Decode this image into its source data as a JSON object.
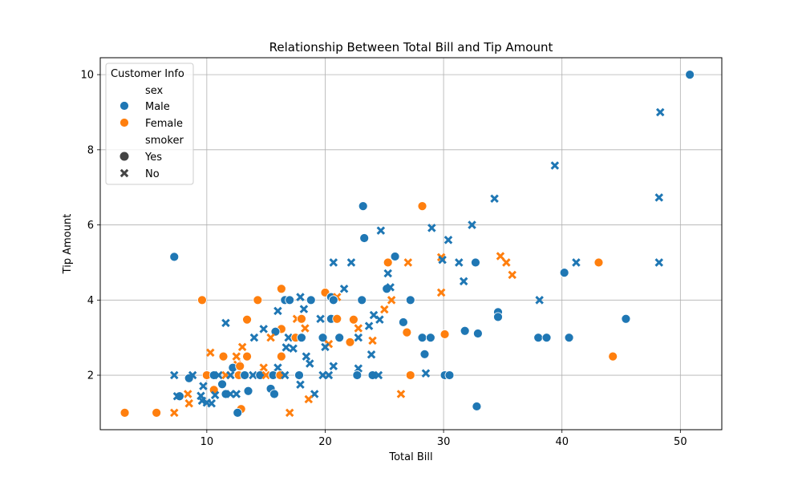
{
  "chart_data": {
    "type": "scatter",
    "title": "Relationship Between Total Bill and Tip Amount",
    "xlabel": "Total Bill",
    "ylabel": "Tip Amount",
    "xlim": [
      1.0,
      53.5
    ],
    "ylim": [
      0.55,
      10.45
    ],
    "xticks": [
      10,
      20,
      30,
      40,
      50
    ],
    "yticks": [
      2,
      4,
      6,
      8,
      10
    ],
    "grid": true,
    "colors": {
      "Male": "#1f77b4",
      "Female": "#ff7f0e"
    },
    "legend": {
      "title": "Customer Info",
      "placement": "upper-left",
      "hue_title": "sex",
      "hue_entries": [
        "Male",
        "Female"
      ],
      "style_title": "smoker",
      "style_entries": [
        "Yes",
        "No"
      ],
      "style_markers": {
        "Yes": "circle",
        "No": "x"
      }
    },
    "points": [
      {
        "x": 50.8,
        "y": 10.0,
        "sex": "Male",
        "smoker": "Yes"
      },
      {
        "x": 48.3,
        "y": 9.0,
        "sex": "Male",
        "smoker": "No"
      },
      {
        "x": 39.4,
        "y": 7.58,
        "sex": "Male",
        "smoker": "No"
      },
      {
        "x": 48.2,
        "y": 6.73,
        "sex": "Male",
        "smoker": "No"
      },
      {
        "x": 34.3,
        "y": 6.7,
        "sex": "Male",
        "smoker": "No"
      },
      {
        "x": 23.2,
        "y": 6.5,
        "sex": "Male",
        "smoker": "Yes"
      },
      {
        "x": 28.2,
        "y": 6.5,
        "sex": "Female",
        "smoker": "Yes"
      },
      {
        "x": 32.4,
        "y": 6.0,
        "sex": "Male",
        "smoker": "No"
      },
      {
        "x": 29.0,
        "y": 5.92,
        "sex": "Male",
        "smoker": "No"
      },
      {
        "x": 24.7,
        "y": 5.85,
        "sex": "Male",
        "smoker": "No"
      },
      {
        "x": 23.3,
        "y": 5.65,
        "sex": "Male",
        "smoker": "Yes"
      },
      {
        "x": 30.4,
        "y": 5.6,
        "sex": "Male",
        "smoker": "No"
      },
      {
        "x": 34.8,
        "y": 5.17,
        "sex": "Female",
        "smoker": "No"
      },
      {
        "x": 25.9,
        "y": 5.16,
        "sex": "Male",
        "smoker": "Yes"
      },
      {
        "x": 7.25,
        "y": 5.15,
        "sex": "Male",
        "smoker": "Yes"
      },
      {
        "x": 29.8,
        "y": 5.14,
        "sex": "Female",
        "smoker": "No"
      },
      {
        "x": 29.9,
        "y": 5.07,
        "sex": "Male",
        "smoker": "No"
      },
      {
        "x": 20.7,
        "y": 5.0,
        "sex": "Male",
        "smoker": "No"
      },
      {
        "x": 22.2,
        "y": 5.0,
        "sex": "Male",
        "smoker": "No"
      },
      {
        "x": 25.3,
        "y": 5.0,
        "sex": "Female",
        "smoker": "Yes"
      },
      {
        "x": 27.0,
        "y": 5.0,
        "sex": "Female",
        "smoker": "No"
      },
      {
        "x": 31.3,
        "y": 5.0,
        "sex": "Male",
        "smoker": "No"
      },
      {
        "x": 32.7,
        "y": 5.0,
        "sex": "Male",
        "smoker": "Yes"
      },
      {
        "x": 35.3,
        "y": 5.0,
        "sex": "Female",
        "smoker": "No"
      },
      {
        "x": 41.2,
        "y": 5.0,
        "sex": "Male",
        "smoker": "No"
      },
      {
        "x": 43.1,
        "y": 5.0,
        "sex": "Female",
        "smoker": "Yes"
      },
      {
        "x": 48.2,
        "y": 5.0,
        "sex": "Male",
        "smoker": "No"
      },
      {
        "x": 40.2,
        "y": 4.73,
        "sex": "Male",
        "smoker": "Yes"
      },
      {
        "x": 25.3,
        "y": 4.71,
        "sex": "Male",
        "smoker": "No"
      },
      {
        "x": 35.8,
        "y": 4.67,
        "sex": "Female",
        "smoker": "No"
      },
      {
        "x": 31.7,
        "y": 4.5,
        "sex": "Male",
        "smoker": "No"
      },
      {
        "x": 16.3,
        "y": 4.3,
        "sex": "Female",
        "smoker": "Yes"
      },
      {
        "x": 21.6,
        "y": 4.3,
        "sex": "Male",
        "smoker": "No"
      },
      {
        "x": 25.2,
        "y": 4.3,
        "sex": "Male",
        "smoker": "Yes"
      },
      {
        "x": 25.5,
        "y": 4.34,
        "sex": "Male",
        "smoker": "No"
      },
      {
        "x": 29.8,
        "y": 4.2,
        "sex": "Female",
        "smoker": "No"
      },
      {
        "x": 20.0,
        "y": 4.2,
        "sex": "Female",
        "smoker": "Yes"
      },
      {
        "x": 20.5,
        "y": 4.08,
        "sex": "Male",
        "smoker": "Yes"
      },
      {
        "x": 21.0,
        "y": 4.08,
        "sex": "Female",
        "smoker": "No"
      },
      {
        "x": 17.9,
        "y": 4.08,
        "sex": "Male",
        "smoker": "No"
      },
      {
        "x": 9.6,
        "y": 4.0,
        "sex": "Female",
        "smoker": "Yes"
      },
      {
        "x": 14.3,
        "y": 4.0,
        "sex": "Female",
        "smoker": "Yes"
      },
      {
        "x": 16.6,
        "y": 4.0,
        "sex": "Male",
        "smoker": "Yes"
      },
      {
        "x": 17.0,
        "y": 4.0,
        "sex": "Male",
        "smoker": "Yes"
      },
      {
        "x": 18.8,
        "y": 4.0,
        "sex": "Male",
        "smoker": "Yes"
      },
      {
        "x": 23.1,
        "y": 4.0,
        "sex": "Male",
        "smoker": "Yes"
      },
      {
        "x": 20.7,
        "y": 4.0,
        "sex": "Male",
        "smoker": "Yes"
      },
      {
        "x": 25.6,
        "y": 4.0,
        "sex": "Female",
        "smoker": "No"
      },
      {
        "x": 27.2,
        "y": 4.0,
        "sex": "Male",
        "smoker": "Yes"
      },
      {
        "x": 38.1,
        "y": 4.0,
        "sex": "Male",
        "smoker": "No"
      },
      {
        "x": 18.2,
        "y": 3.76,
        "sex": "Male",
        "smoker": "No"
      },
      {
        "x": 16.0,
        "y": 3.71,
        "sex": "Male",
        "smoker": "No"
      },
      {
        "x": 25.0,
        "y": 3.75,
        "sex": "Female",
        "smoker": "No"
      },
      {
        "x": 34.6,
        "y": 3.68,
        "sex": "Male",
        "smoker": "Yes"
      },
      {
        "x": 24.1,
        "y": 3.6,
        "sex": "Male",
        "smoker": "No"
      },
      {
        "x": 34.6,
        "y": 3.55,
        "sex": "Male",
        "smoker": "Yes"
      },
      {
        "x": 20.5,
        "y": 3.5,
        "sex": "Male",
        "smoker": "Yes"
      },
      {
        "x": 13.4,
        "y": 3.48,
        "sex": "Female",
        "smoker": "Yes"
      },
      {
        "x": 17.6,
        "y": 3.5,
        "sex": "Female",
        "smoker": "No"
      },
      {
        "x": 18.0,
        "y": 3.5,
        "sex": "Female",
        "smoker": "Yes"
      },
      {
        "x": 19.6,
        "y": 3.5,
        "sex": "Male",
        "smoker": "No"
      },
      {
        "x": 21.0,
        "y": 3.5,
        "sex": "Female",
        "smoker": "Yes"
      },
      {
        "x": 22.4,
        "y": 3.48,
        "sex": "Female",
        "smoker": "Yes"
      },
      {
        "x": 24.6,
        "y": 3.48,
        "sex": "Male",
        "smoker": "No"
      },
      {
        "x": 45.4,
        "y": 3.5,
        "sex": "Male",
        "smoker": "Yes"
      },
      {
        "x": 26.6,
        "y": 3.41,
        "sex": "Male",
        "smoker": "Yes"
      },
      {
        "x": 11.6,
        "y": 3.39,
        "sex": "Male",
        "smoker": "No"
      },
      {
        "x": 23.7,
        "y": 3.31,
        "sex": "Male",
        "smoker": "No"
      },
      {
        "x": 22.8,
        "y": 3.25,
        "sex": "Female",
        "smoker": "No"
      },
      {
        "x": 16.3,
        "y": 3.23,
        "sex": "Female",
        "smoker": "Yes"
      },
      {
        "x": 14.8,
        "y": 3.23,
        "sex": "Male",
        "smoker": "No"
      },
      {
        "x": 18.3,
        "y": 3.25,
        "sex": "Female",
        "smoker": "No"
      },
      {
        "x": 31.8,
        "y": 3.18,
        "sex": "Male",
        "smoker": "Yes"
      },
      {
        "x": 15.8,
        "y": 3.16,
        "sex": "Male",
        "smoker": "Yes"
      },
      {
        "x": 26.9,
        "y": 3.14,
        "sex": "Female",
        "smoker": "Yes"
      },
      {
        "x": 32.9,
        "y": 3.11,
        "sex": "Male",
        "smoker": "Yes"
      },
      {
        "x": 30.1,
        "y": 3.09,
        "sex": "Female",
        "smoker": "Yes"
      },
      {
        "x": 14.0,
        "y": 3.0,
        "sex": "Male",
        "smoker": "No"
      },
      {
        "x": 15.4,
        "y": 3.0,
        "sex": "Female",
        "smoker": "No"
      },
      {
        "x": 16.9,
        "y": 3.0,
        "sex": "Male",
        "smoker": "No"
      },
      {
        "x": 17.5,
        "y": 3.0,
        "sex": "Female",
        "smoker": "Yes"
      },
      {
        "x": 18.0,
        "y": 3.0,
        "sex": "Male",
        "smoker": "Yes"
      },
      {
        "x": 19.8,
        "y": 3.0,
        "sex": "Male",
        "smoker": "Yes"
      },
      {
        "x": 21.2,
        "y": 3.0,
        "sex": "Male",
        "smoker": "Yes"
      },
      {
        "x": 22.8,
        "y": 3.0,
        "sex": "Male",
        "smoker": "No"
      },
      {
        "x": 28.2,
        "y": 3.0,
        "sex": "Male",
        "smoker": "Yes"
      },
      {
        "x": 28.9,
        "y": 3.0,
        "sex": "Male",
        "smoker": "Yes"
      },
      {
        "x": 38.0,
        "y": 3.0,
        "sex": "Male",
        "smoker": "Yes"
      },
      {
        "x": 38.7,
        "y": 3.0,
        "sex": "Male",
        "smoker": "Yes"
      },
      {
        "x": 40.6,
        "y": 3.0,
        "sex": "Male",
        "smoker": "Yes"
      },
      {
        "x": 24.0,
        "y": 2.92,
        "sex": "Female",
        "smoker": "No"
      },
      {
        "x": 22.1,
        "y": 2.88,
        "sex": "Female",
        "smoker": "Yes"
      },
      {
        "x": 20.3,
        "y": 2.83,
        "sex": "Female",
        "smoker": "No"
      },
      {
        "x": 13.0,
        "y": 2.75,
        "sex": "Female",
        "smoker": "No"
      },
      {
        "x": 17.3,
        "y": 2.71,
        "sex": "Male",
        "smoker": "No"
      },
      {
        "x": 20.0,
        "y": 2.75,
        "sex": "Male",
        "smoker": "No"
      },
      {
        "x": 16.7,
        "y": 2.74,
        "sex": "Male",
        "smoker": "No"
      },
      {
        "x": 10.3,
        "y": 2.6,
        "sex": "Female",
        "smoker": "No"
      },
      {
        "x": 28.4,
        "y": 2.56,
        "sex": "Male",
        "smoker": "Yes"
      },
      {
        "x": 23.9,
        "y": 2.55,
        "sex": "Male",
        "smoker": "No"
      },
      {
        "x": 11.4,
        "y": 2.5,
        "sex": "Female",
        "smoker": "Yes"
      },
      {
        "x": 12.5,
        "y": 2.5,
        "sex": "Female",
        "smoker": "No"
      },
      {
        "x": 13.4,
        "y": 2.5,
        "sex": "Female",
        "smoker": "Yes"
      },
      {
        "x": 16.3,
        "y": 2.5,
        "sex": "Female",
        "smoker": "Yes"
      },
      {
        "x": 18.4,
        "y": 2.5,
        "sex": "Male",
        "smoker": "No"
      },
      {
        "x": 44.3,
        "y": 2.5,
        "sex": "Female",
        "smoker": "Yes"
      },
      {
        "x": 18.7,
        "y": 2.31,
        "sex": "Male",
        "smoker": "No"
      },
      {
        "x": 12.6,
        "y": 2.28,
        "sex": "Female",
        "smoker": "No"
      },
      {
        "x": 12.2,
        "y": 2.2,
        "sex": "Male",
        "smoker": "Yes"
      },
      {
        "x": 12.8,
        "y": 2.24,
        "sex": "Female",
        "smoker": "Yes"
      },
      {
        "x": 14.8,
        "y": 2.2,
        "sex": "Female",
        "smoker": "No"
      },
      {
        "x": 16.0,
        "y": 2.2,
        "sex": "Male",
        "smoker": "No"
      },
      {
        "x": 20.7,
        "y": 2.24,
        "sex": "Male",
        "smoker": "No"
      },
      {
        "x": 22.8,
        "y": 2.18,
        "sex": "Male",
        "smoker": "No"
      },
      {
        "x": 7.25,
        "y": 2.0,
        "sex": "Male",
        "smoker": "No"
      },
      {
        "x": 8.5,
        "y": 1.92,
        "sex": "Male",
        "smoker": "Yes"
      },
      {
        "x": 8.8,
        "y": 2.0,
        "sex": "Male",
        "smoker": "No"
      },
      {
        "x": 10.0,
        "y": 2.0,
        "sex": "Female",
        "smoker": "Yes"
      },
      {
        "x": 10.6,
        "y": 2.0,
        "sex": "Male",
        "smoker": "Yes"
      },
      {
        "x": 11.0,
        "y": 2.0,
        "sex": "Male",
        "smoker": "No"
      },
      {
        "x": 11.6,
        "y": 2.0,
        "sex": "Female",
        "smoker": "No"
      },
      {
        "x": 12.0,
        "y": 2.0,
        "sex": "Male",
        "smoker": "No"
      },
      {
        "x": 12.7,
        "y": 2.0,
        "sex": "Female",
        "smoker": "Yes"
      },
      {
        "x": 13.2,
        "y": 2.0,
        "sex": "Male",
        "smoker": "Yes"
      },
      {
        "x": 13.9,
        "y": 2.0,
        "sex": "Male",
        "smoker": "No"
      },
      {
        "x": 14.5,
        "y": 2.0,
        "sex": "Male",
        "smoker": "Yes"
      },
      {
        "x": 15.0,
        "y": 2.0,
        "sex": "Female",
        "smoker": "No"
      },
      {
        "x": 15.6,
        "y": 2.0,
        "sex": "Male",
        "smoker": "Yes"
      },
      {
        "x": 16.2,
        "y": 2.0,
        "sex": "Female",
        "smoker": "Yes"
      },
      {
        "x": 16.6,
        "y": 2.0,
        "sex": "Male",
        "smoker": "No"
      },
      {
        "x": 17.8,
        "y": 2.0,
        "sex": "Male",
        "smoker": "Yes"
      },
      {
        "x": 19.8,
        "y": 2.0,
        "sex": "Male",
        "smoker": "No"
      },
      {
        "x": 20.3,
        "y": 2.0,
        "sex": "Male",
        "smoker": "No"
      },
      {
        "x": 22.7,
        "y": 2.0,
        "sex": "Male",
        "smoker": "Yes"
      },
      {
        "x": 24.0,
        "y": 2.0,
        "sex": "Male",
        "smoker": "Yes"
      },
      {
        "x": 24.5,
        "y": 2.0,
        "sex": "Male",
        "smoker": "No"
      },
      {
        "x": 27.2,
        "y": 2.0,
        "sex": "Female",
        "smoker": "Yes"
      },
      {
        "x": 28.5,
        "y": 2.05,
        "sex": "Male",
        "smoker": "No"
      },
      {
        "x": 30.1,
        "y": 2.0,
        "sex": "Male",
        "smoker": "Yes"
      },
      {
        "x": 30.5,
        "y": 2.0,
        "sex": "Male",
        "smoker": "Yes"
      },
      {
        "x": 11.3,
        "y": 1.76,
        "sex": "Male",
        "smoker": "Yes"
      },
      {
        "x": 9.7,
        "y": 1.71,
        "sex": "Male",
        "smoker": "No"
      },
      {
        "x": 15.4,
        "y": 1.64,
        "sex": "Male",
        "smoker": "Yes"
      },
      {
        "x": 17.9,
        "y": 1.75,
        "sex": "Male",
        "smoker": "No"
      },
      {
        "x": 10.6,
        "y": 1.61,
        "sex": "Female",
        "smoker": "Yes"
      },
      {
        "x": 13.5,
        "y": 1.58,
        "sex": "Male",
        "smoker": "Yes"
      },
      {
        "x": 11.6,
        "y": 1.5,
        "sex": "Male",
        "smoker": "Yes"
      },
      {
        "x": 12.0,
        "y": 1.5,
        "sex": "Male",
        "smoker": "No"
      },
      {
        "x": 12.5,
        "y": 1.5,
        "sex": "Male",
        "smoker": "No"
      },
      {
        "x": 15.7,
        "y": 1.5,
        "sex": "Male",
        "smoker": "Yes"
      },
      {
        "x": 19.1,
        "y": 1.5,
        "sex": "Male",
        "smoker": "No"
      },
      {
        "x": 26.4,
        "y": 1.5,
        "sex": "Female",
        "smoker": "No"
      },
      {
        "x": 8.4,
        "y": 1.5,
        "sex": "Female",
        "smoker": "No"
      },
      {
        "x": 7.7,
        "y": 1.44,
        "sex": "Male",
        "smoker": "Yes"
      },
      {
        "x": 7.5,
        "y": 1.44,
        "sex": "Male",
        "smoker": "No"
      },
      {
        "x": 9.5,
        "y": 1.45,
        "sex": "Male",
        "smoker": "No"
      },
      {
        "x": 10.7,
        "y": 1.47,
        "sex": "Male",
        "smoker": "No"
      },
      {
        "x": 18.6,
        "y": 1.36,
        "sex": "Female",
        "smoker": "No"
      },
      {
        "x": 9.6,
        "y": 1.32,
        "sex": "Male",
        "smoker": "No"
      },
      {
        "x": 10.0,
        "y": 1.27,
        "sex": "Male",
        "smoker": "No"
      },
      {
        "x": 10.4,
        "y": 1.25,
        "sex": "Male",
        "smoker": "No"
      },
      {
        "x": 8.5,
        "y": 1.25,
        "sex": "Female",
        "smoker": "No"
      },
      {
        "x": 32.8,
        "y": 1.17,
        "sex": "Male",
        "smoker": "Yes"
      },
      {
        "x": 12.9,
        "y": 1.1,
        "sex": "Female",
        "smoker": "Yes"
      },
      {
        "x": 3.07,
        "y": 1.0,
        "sex": "Female",
        "smoker": "Yes"
      },
      {
        "x": 5.75,
        "y": 1.0,
        "sex": "Female",
        "smoker": "Yes"
      },
      {
        "x": 7.25,
        "y": 1.0,
        "sex": "Female",
        "smoker": "No"
      },
      {
        "x": 12.6,
        "y": 1.0,
        "sex": "Male",
        "smoker": "Yes"
      },
      {
        "x": 17.0,
        "y": 1.0,
        "sex": "Female",
        "smoker": "No"
      }
    ]
  }
}
